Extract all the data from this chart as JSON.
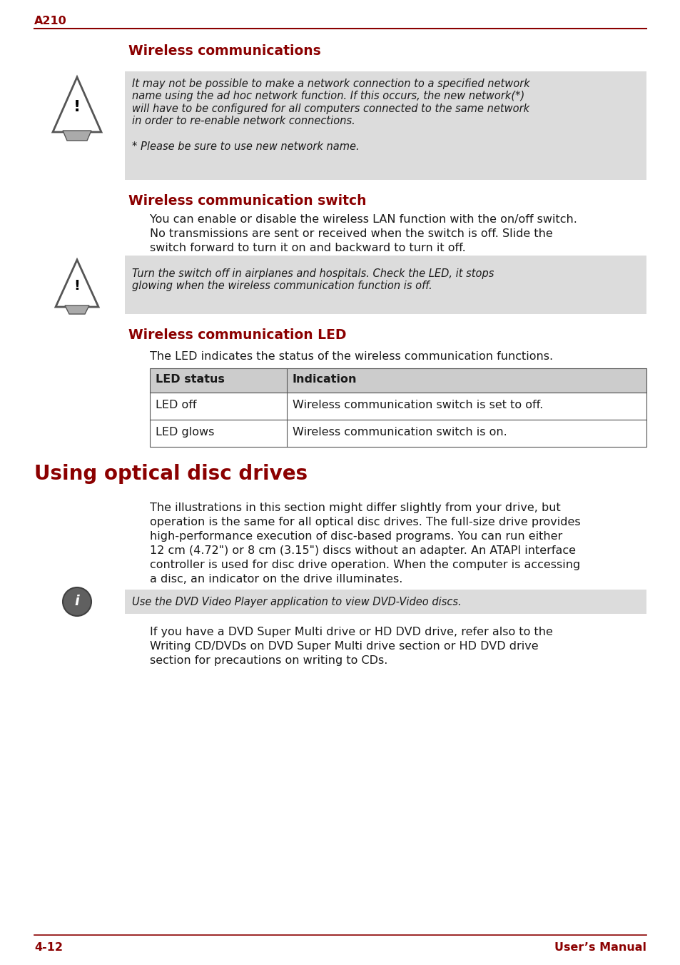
{
  "page_label": "A210",
  "footer_left": "4-12",
  "footer_right": "User’s Manual",
  "bg_color": "#FFFFFF",
  "section1_title": "Wireless communications",
  "warning1_text_line1": "It may not be possible to make a network connection to a specified network",
  "warning1_text_line2": "name using the ad hoc network function. If this occurs, the new network(*)",
  "warning1_text_line3": "will have to be configured for all computers connected to the same network",
  "warning1_text_line4": "in order to re-enable network connections.",
  "warning1_text_line5": "",
  "warning1_text_line6": "* Please be sure to use new network name.",
  "section2_title": "Wireless communication switch",
  "section2_body_line1": "You can enable or disable the wireless LAN function with the on/off switch.",
  "section2_body_line2": "No transmissions are sent or received when the switch is off. Slide the",
  "section2_body_line3": "switch forward to turn it on and backward to turn it off.",
  "warning2_text_line1": "Turn the switch off in airplanes and hospitals. Check the LED, it stops",
  "warning2_text_line2": "glowing when the wireless communication function is off.",
  "section3_title": "Wireless communication LED",
  "section3_body": "The LED indicates the status of the wireless communication functions.",
  "table_headers": [
    "LED status",
    "Indication"
  ],
  "table_rows": [
    [
      "LED off",
      "Wireless communication switch is set to off."
    ],
    [
      "LED glows",
      "Wireless communication switch is on."
    ]
  ],
  "section4_title": "Using optical disc drives",
  "section4_body_line1": "The illustrations in this section might differ slightly from your drive, but",
  "section4_body_line2": "operation is the same for all optical disc drives. The full-size drive provides",
  "section4_body_line3": "high-performance execution of disc-based programs. You can run either",
  "section4_body_line4": "12 cm (4.72\") or 8 cm (3.15\") discs without an adapter. An ATAPI interface",
  "section4_body_line5": "controller is used for disc drive operation. When the computer is accessing",
  "section4_body_line6": "a disc, an indicator on the drive illuminates.",
  "info_text": "Use the DVD Video Player application to view DVD-Video discs.",
  "section4_body2_line1": "If you have a DVD Super Multi drive or HD DVD drive, refer also to the",
  "section4_body2_line2": "Writing CD/DVDs on DVD Super Multi drive section or HD DVD drive",
  "section4_body2_line3": "section for precautions on writing to CDs.",
  "gray_bg": "#DCDCDC",
  "red_color": "#8B0000",
  "black_color": "#1A1A1A",
  "body_fontsize": 11.5,
  "title_fontsize": 13.5,
  "big_title_fontsize": 20
}
